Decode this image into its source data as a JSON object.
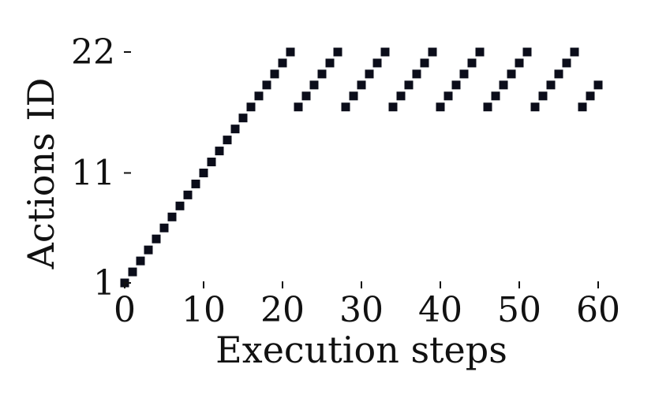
{
  "chart_data": {
    "type": "scatter",
    "title": "",
    "xlabel": "Execution steps",
    "ylabel": "Actions ID",
    "xlim": [
      0,
      60
    ],
    "ylim": [
      1,
      22
    ],
    "grid": false,
    "legend": "none",
    "x_ticks": [
      {
        "value": 0,
        "label": "0"
      },
      {
        "value": 10,
        "label": "10"
      },
      {
        "value": 20,
        "label": "20"
      },
      {
        "value": 30,
        "label": "30"
      },
      {
        "value": 40,
        "label": "40"
      },
      {
        "value": 50,
        "label": "50"
      },
      {
        "value": 60,
        "label": "60"
      }
    ],
    "y_ticks": [
      {
        "value": 1,
        "label": "1"
      },
      {
        "value": 11,
        "label": "11"
      },
      {
        "value": 22,
        "label": "22"
      }
    ],
    "marker_color": "#0b0d1a",
    "points": [
      [
        0,
        1
      ],
      [
        1,
        2
      ],
      [
        2,
        3
      ],
      [
        3,
        4
      ],
      [
        4,
        5
      ],
      [
        5,
        6
      ],
      [
        6,
        7
      ],
      [
        7,
        8
      ],
      [
        8,
        9
      ],
      [
        9,
        10
      ],
      [
        10,
        11
      ],
      [
        11,
        12
      ],
      [
        12,
        13
      ],
      [
        13,
        14
      ],
      [
        14,
        15
      ],
      [
        15,
        16
      ],
      [
        16,
        17
      ],
      [
        17,
        18
      ],
      [
        18,
        19
      ],
      [
        19,
        20
      ],
      [
        20,
        21
      ],
      [
        21,
        22
      ],
      [
        22,
        17
      ],
      [
        23,
        18
      ],
      [
        24,
        19
      ],
      [
        25,
        20
      ],
      [
        26,
        21
      ],
      [
        27,
        22
      ],
      [
        28,
        17
      ],
      [
        29,
        18
      ],
      [
        30,
        19
      ],
      [
        31,
        20
      ],
      [
        32,
        21
      ],
      [
        33,
        22
      ],
      [
        34,
        17
      ],
      [
        35,
        18
      ],
      [
        36,
        19
      ],
      [
        37,
        20
      ],
      [
        38,
        21
      ],
      [
        39,
        22
      ],
      [
        40,
        17
      ],
      [
        41,
        18
      ],
      [
        42,
        19
      ],
      [
        43,
        20
      ],
      [
        44,
        21
      ],
      [
        45,
        22
      ],
      [
        46,
        17
      ],
      [
        47,
        18
      ],
      [
        48,
        19
      ],
      [
        49,
        20
      ],
      [
        50,
        21
      ],
      [
        51,
        22
      ],
      [
        52,
        17
      ],
      [
        53,
        18
      ],
      [
        54,
        19
      ],
      [
        55,
        20
      ],
      [
        56,
        21
      ],
      [
        57,
        22
      ],
      [
        58,
        17
      ],
      [
        59,
        18
      ],
      [
        60,
        19
      ]
    ]
  }
}
